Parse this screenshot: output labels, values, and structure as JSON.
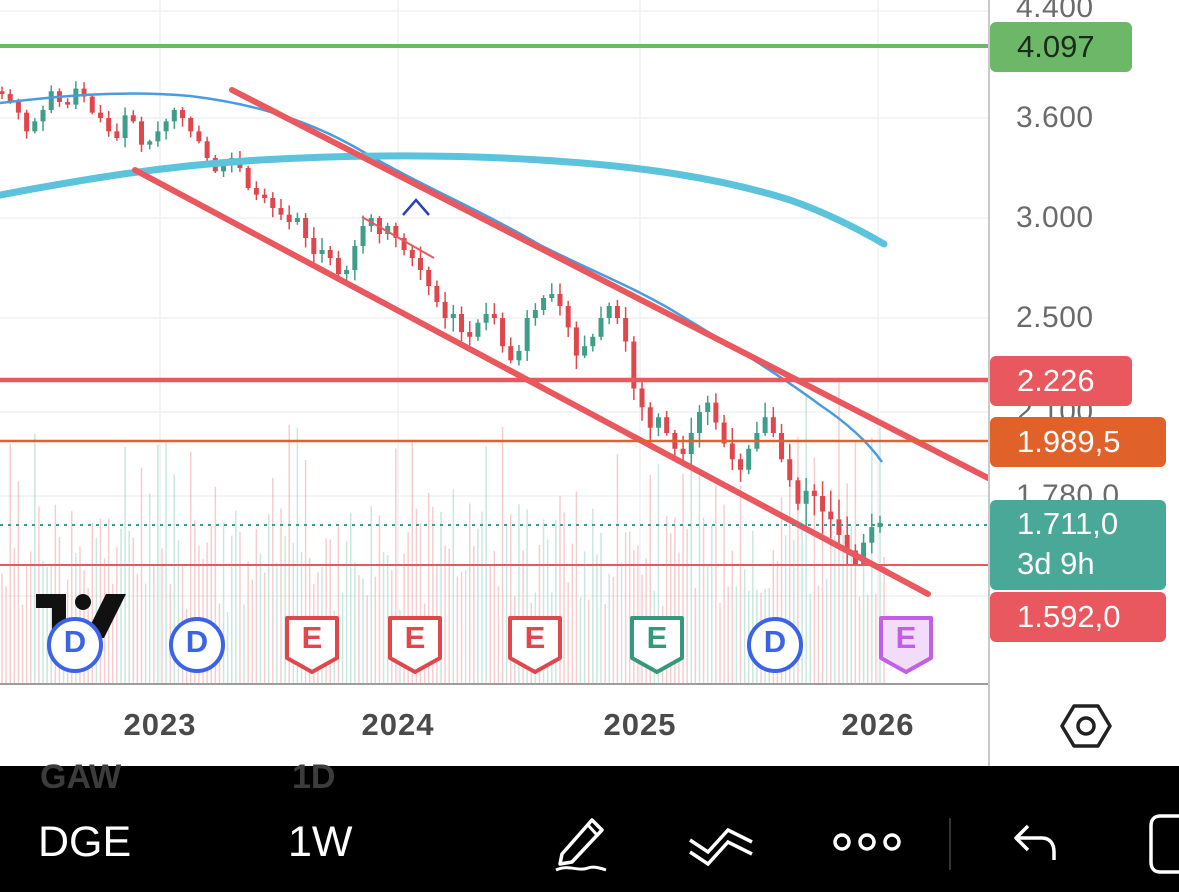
{
  "price_axis": {
    "ticks": [
      "4.400",
      "3.600",
      "3.000",
      "2.500",
      "2.100",
      "1.780,0"
    ],
    "tags": [
      {
        "label": "4.097",
        "color": "#6cb868"
      },
      {
        "label": "2.226",
        "color": "#e8585e"
      },
      {
        "label": "1.989,5",
        "color": "#e0622a"
      },
      {
        "label": "1.711,0",
        "sublabel": "3d 9h",
        "color": "#3d9e8c"
      },
      {
        "label": "1.592,0",
        "color": "#e8585e"
      }
    ]
  },
  "time_axis": {
    "labels": [
      "2023",
      "2024",
      "2025",
      "2026"
    ]
  },
  "logo": {
    "name": "tradingview-logo"
  },
  "events": [
    {
      "letter": "D",
      "type": "dividend",
      "color": "#3a63e8"
    },
    {
      "letter": "D",
      "type": "dividend",
      "color": "#3a63e8"
    },
    {
      "letter": "E",
      "type": "earnings",
      "color": "#e0474d"
    },
    {
      "letter": "E",
      "type": "earnings",
      "color": "#e0474d"
    },
    {
      "letter": "E",
      "type": "earnings",
      "color": "#e0474d"
    },
    {
      "letter": "E",
      "type": "earnings",
      "color": "#35977c"
    },
    {
      "letter": "D",
      "type": "dividend",
      "color": "#3a63e8"
    },
    {
      "letter": "E",
      "type": "earnings",
      "color": "#c45ee6"
    }
  ],
  "toolbar": {
    "ghost_symbol": "GAW",
    "ghost_interval": "1D",
    "symbol": "DGE",
    "interval": "1W",
    "icons": [
      "pen-icon",
      "chart-indicators-icon",
      "more-icon",
      "undo-icon",
      "fullscreen-icon"
    ]
  },
  "chart_data": {
    "type": "candlestick",
    "x_labels": [
      "2023",
      "2024",
      "2025",
      "2026"
    ],
    "y_ticks": [
      4.4,
      3.6,
      3.0,
      2.5,
      2.1,
      1.78
    ],
    "horizontal_levels": [
      {
        "value": 4.097,
        "color": "#6cb868"
      },
      {
        "value": 2.226,
        "color": "#e8585e"
      },
      {
        "value": 1.9895,
        "color": "#e0622a"
      },
      {
        "value": 1.711,
        "color": "#3d9e8c",
        "style": "dotted"
      },
      {
        "value": 1.592,
        "color": "#e8585e"
      }
    ],
    "close_path": [
      3.78,
      3.72,
      3.64,
      3.52,
      3.58,
      3.66,
      3.8,
      3.72,
      3.7,
      3.82,
      3.76,
      3.64,
      3.6,
      3.52,
      3.48,
      3.62,
      3.58,
      3.44,
      3.46,
      3.52,
      3.58,
      3.66,
      3.6,
      3.52,
      3.46,
      3.36,
      3.28,
      3.32,
      3.36,
      3.3,
      3.18,
      3.14,
      3.12,
      3.06,
      3.02,
      2.98,
      3.0,
      2.9,
      2.82,
      2.84,
      2.8,
      2.72,
      2.74,
      2.86,
      2.96,
      3.0,
      2.92,
      2.96,
      2.9,
      2.84,
      2.8,
      2.74,
      2.66,
      2.58,
      2.5,
      2.52,
      2.44,
      2.42,
      2.48,
      2.52,
      2.5,
      2.38,
      2.32,
      2.36,
      2.5,
      2.54,
      2.6,
      2.62,
      2.56,
      2.46,
      2.34,
      2.38,
      2.42,
      2.5,
      2.56,
      2.5,
      2.4,
      2.2,
      2.12,
      2.04,
      2.08,
      2.02,
      1.96,
      1.94,
      2.02,
      2.1,
      2.14,
      2.06,
      1.98,
      1.92,
      1.88,
      1.96,
      2.02,
      2.08,
      2.02,
      1.92,
      1.84,
      1.76,
      1.8,
      1.78,
      1.74,
      1.72,
      1.68,
      1.64,
      1.6,
      1.66,
      1.7,
      1.711
    ]
  }
}
